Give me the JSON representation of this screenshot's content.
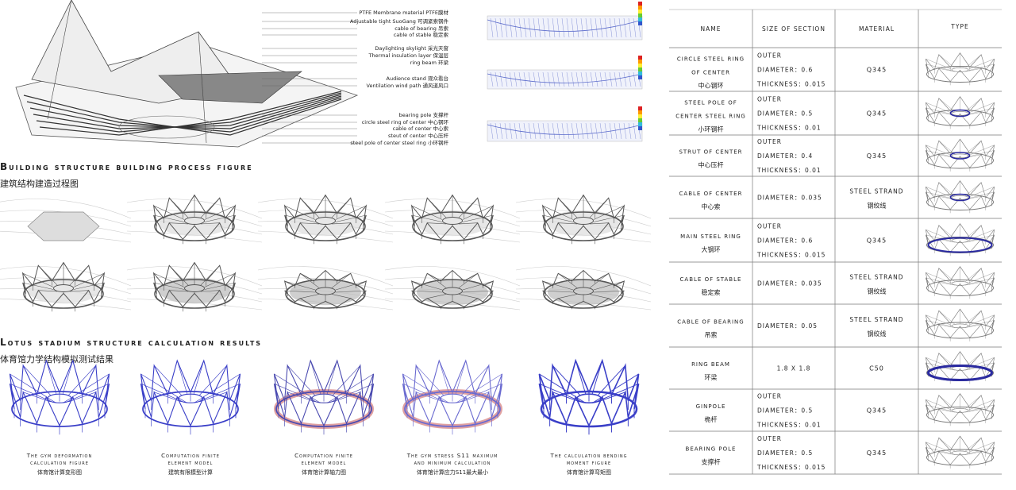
{
  "annotations": [
    "PTFE Membrane material PTFE膜材",
    "Adjustable tight SuoGang 可调紧索钢件",
    "cable of bearing 吊索",
    "cable of stable 稳定索",
    "Daylighting skylight 采光天窗",
    "Thermal insulation layer 保温层",
    "ring beam 环梁",
    "Audience stand 观众看台",
    "Ventilation wind path 通风道风口",
    "bearing pole 支撑杆",
    "circle steel ring of center 中心钢环",
    "cable of center 中心索",
    "steut of center 中心压杆",
    "steel pole of center steel ring 小环钢杆"
  ],
  "process": {
    "title": "Building structure building process figure",
    "title_cn": "建筑结构建造过程图"
  },
  "results": {
    "title": "Lotus stadium structure calculation results",
    "title_cn": "体育馆力学结构模拟测试结果",
    "captions": [
      {
        "en": [
          "The gym deformation",
          "calculation figure"
        ],
        "cn": "体育馆计算变形图"
      },
      {
        "en": [
          "Computation finite",
          "element model"
        ],
        "cn": "建筑有限模型计算"
      },
      {
        "en": [
          "Computation finite",
          "element model"
        ],
        "cn": "体育馆计算轴力图"
      },
      {
        "en": [
          "The gym stress S11 maximum",
          "and minimum calculation"
        ],
        "cn": "体育馆计算应力S11最大最小"
      },
      {
        "en": [
          "The calculation bending",
          "moment figure"
        ],
        "cn": "体育馆计算弯矩图"
      }
    ]
  },
  "table": {
    "headers": [
      "NAME",
      "SIZE OF SECTION",
      "MATERIAL",
      "TYPE"
    ],
    "rows": [
      {
        "name": [
          "CIRCLE STEEL RING",
          "OF CENTER"
        ],
        "name_cn": "中心钢环",
        "section": [
          "OUTER",
          "DIAMETER：0.6",
          "THICKNESS：0.015"
        ],
        "material": "Q345"
      },
      {
        "name": [
          "STEEL POLE OF",
          "CENTER STEEL RING"
        ],
        "name_cn": "小环钢杆",
        "section": [
          "OUTER",
          "DIAMETER：0.5",
          "THICKNESS：0.01"
        ],
        "material": "Q345"
      },
      {
        "name": [
          "STRUT OF CENTER"
        ],
        "name_cn": "中心压杆",
        "section": [
          "OUTER",
          "DIAMETER：0.4",
          "THICKNESS：0.01"
        ],
        "material": "Q345"
      },
      {
        "name": [
          "CABLE OF CENTER"
        ],
        "name_cn": "中心索",
        "section": [
          "DIAMETER：0.035"
        ],
        "material": "STEEL STRAND",
        "material_cn": "钢绞线"
      },
      {
        "name": [
          "MAIN STEEL RING"
        ],
        "name_cn": "大钢环",
        "section": [
          "OUTER",
          "DIAMETER：0.6",
          "THICKNESS：0.015"
        ],
        "material": "Q345"
      },
      {
        "name": [
          "CABLE OF STABLE"
        ],
        "name_cn": "稳定索",
        "section": [
          "DIAMETER：0.035"
        ],
        "material": "STEEL STRAND",
        "material_cn": "钢绞线"
      },
      {
        "name": [
          "CABLE OF BEARING"
        ],
        "name_cn": "吊索",
        "section": [
          "DIAMETER：0.05"
        ],
        "material": "STEEL STRAND",
        "material_cn": "钢绞线"
      },
      {
        "name": [
          "RING BEAM"
        ],
        "name_cn": "环梁",
        "section": [
          "1.8 X 1.8"
        ],
        "material": "C50"
      },
      {
        "name": [
          "GINPOLE"
        ],
        "name_cn": "桅杆",
        "section": [
          "OUTER",
          "DIAMETER：0.5",
          "THICKNESS：0.01"
        ],
        "material": "Q345"
      },
      {
        "name": [
          "BEARING POLE"
        ],
        "name_cn": "支撑杆",
        "section": [
          "OUTER",
          "DIAMETER：0.5",
          "THICKNESS：0.015"
        ],
        "material": "Q345"
      }
    ]
  }
}
